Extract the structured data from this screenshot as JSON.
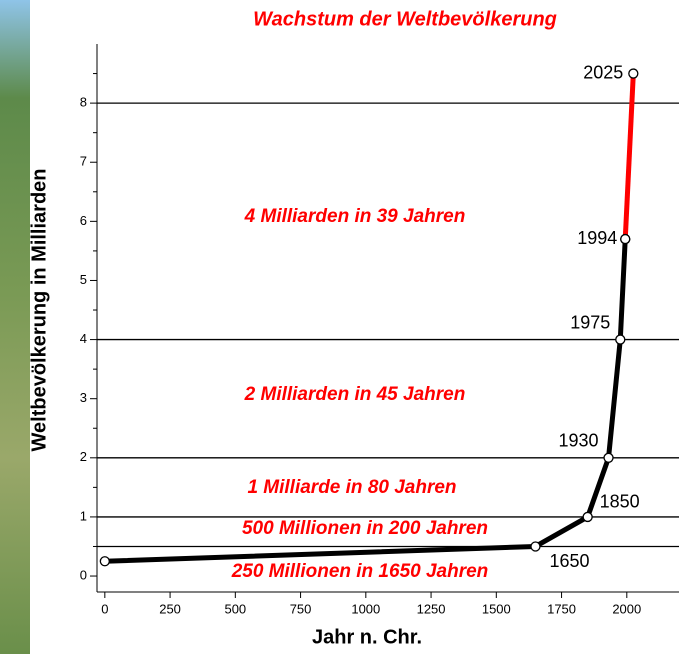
{
  "chart_data": {
    "type": "line",
    "title": "Wachstum der Weltbevölkerung",
    "xlabel": "Jahr n. Chr.",
    "ylabel": "Weltbevölkerung in Milliarden",
    "series": [
      {
        "color": "#000000",
        "x": [
          0,
          1650,
          1850,
          1930,
          1975,
          1994
        ],
        "values": [
          0.25,
          0.5,
          1,
          2,
          4,
          5.7
        ]
      },
      {
        "color": "#ff0000",
        "x": [
          1994,
          2025
        ],
        "values": [
          5.7,
          8.5
        ]
      }
    ],
    "xlim": [
      -30,
      2200
    ],
    "ylim": [
      -0.27,
      9
    ],
    "xticks": [
      0,
      250,
      500,
      750,
      1000,
      1250,
      1500,
      1750,
      2000
    ],
    "yticks": [
      0,
      1,
      2,
      3,
      4,
      5,
      6,
      7,
      8
    ],
    "yminor": [
      0.5,
      1.5,
      2.5,
      3.5,
      4.5,
      5.5,
      6.5,
      7.5,
      8.5
    ],
    "hlines": [
      0.5,
      1,
      2,
      4,
      8
    ],
    "annotations": [
      "4 Milliarden in 39 Jahren",
      "2 Milliarden in 45 Jahren",
      "1 Milliarde in 80 Jahren",
      "500 Millionen in 200 Jahren",
      "250 Millionen in 1650 Jahren"
    ]
  }
}
